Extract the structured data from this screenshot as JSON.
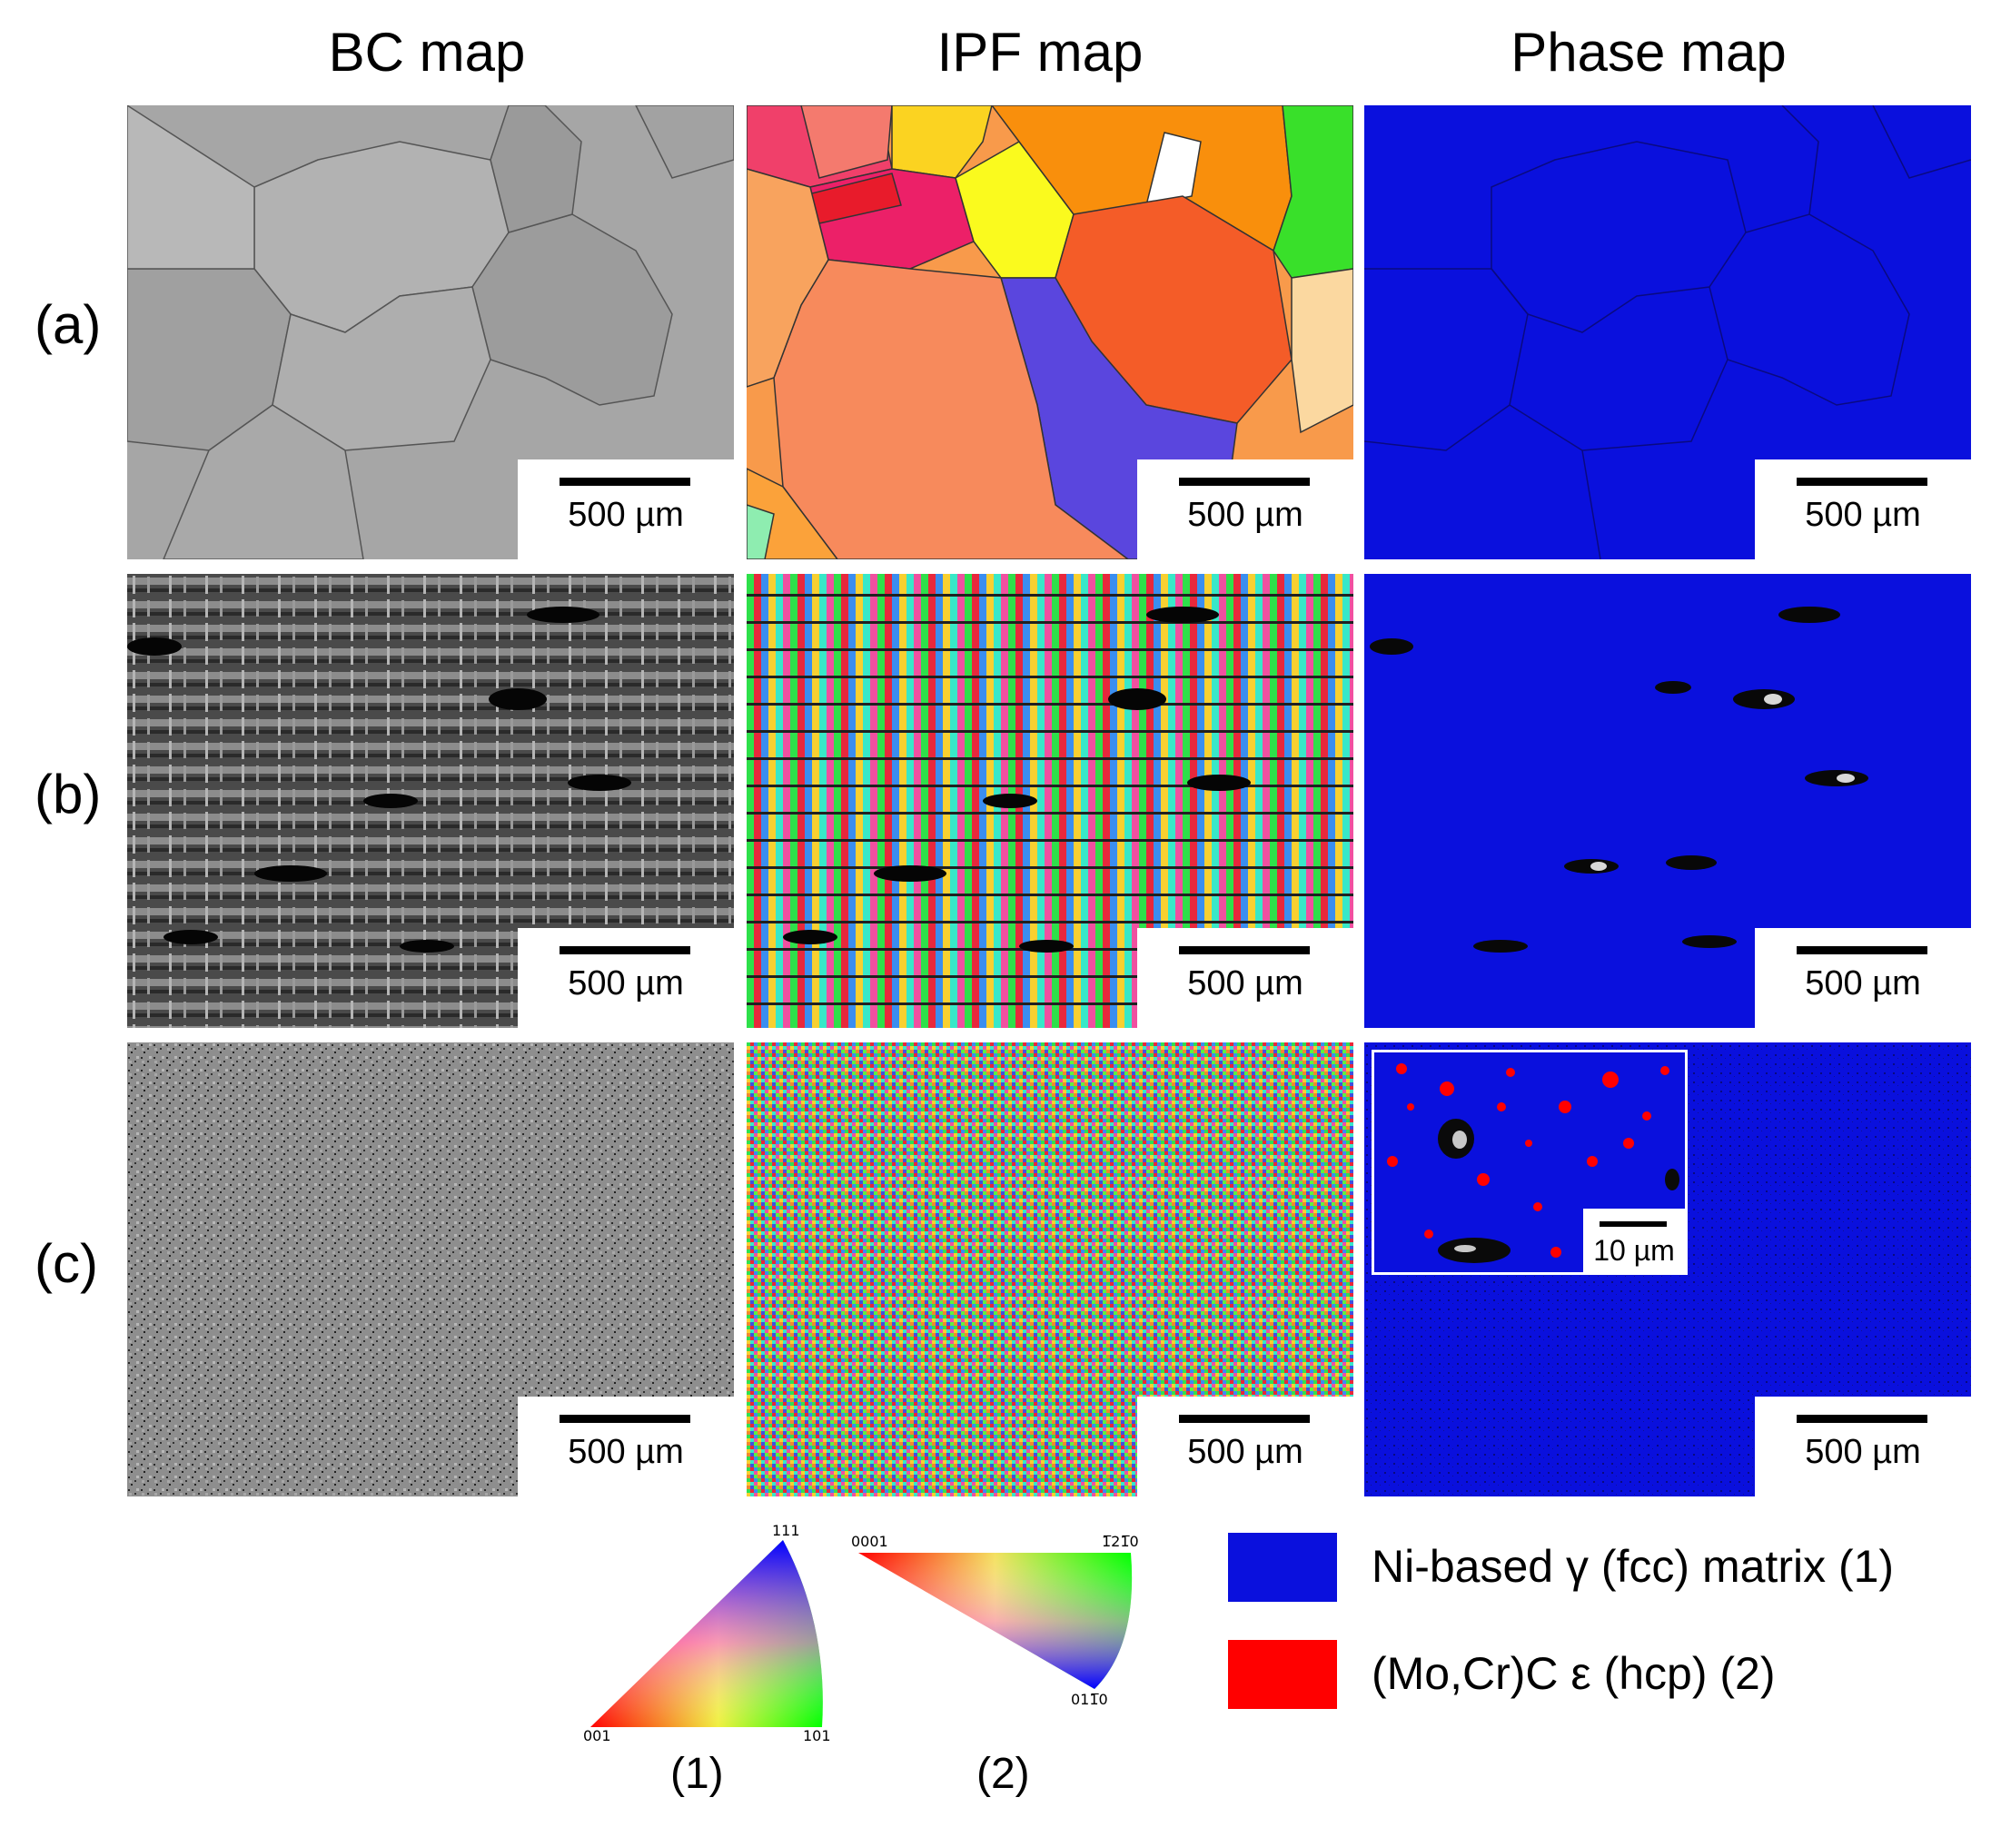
{
  "columns": [
    "BC map",
    "IPF map",
    "Phase map"
  ],
  "rows": [
    "(a)",
    "(b)",
    "(c)"
  ],
  "scale_bar_label": "500 µm",
  "inset_scale_label": "10 µm",
  "ipf_keys": {
    "fcc": {
      "caption": "(1)",
      "corners": [
        "111",
        "001",
        "101"
      ]
    },
    "hcp": {
      "caption": "(2)",
      "corners": [
        "0001",
        "1̅21̅0",
        "011̅0"
      ]
    }
  },
  "legend": [
    {
      "label": "Ni-based γ (fcc) matrix (1)",
      "color": "#0a10dd"
    },
    {
      "label": "(Mo,Cr)C ε (hcp) (2)",
      "color": "#ff0000"
    }
  ]
}
